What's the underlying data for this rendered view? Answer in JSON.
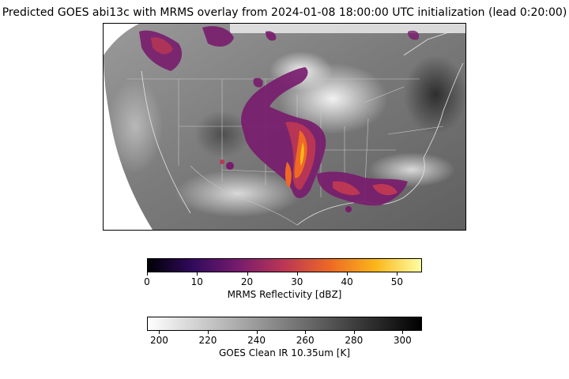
{
  "title": "Predicted GOES abi13c with MRMS overlay from 2024-01-08 18:00:00 UTC initialization (lead 0:20:00)",
  "colorbars": {
    "mrms": {
      "label": "MRMS Reflectivity [dBZ]",
      "range": [
        0,
        55
      ],
      "ticks": [
        "0",
        "10",
        "20",
        "30",
        "40",
        "50"
      ],
      "colormap": "inferno",
      "colors": [
        "#000004",
        "#320a5e",
        "#781c6d",
        "#bc3754",
        "#ed6925",
        "#fbb61a",
        "#fcffa4"
      ]
    },
    "goes": {
      "label": "GOES Clean IR 10.35um [K]",
      "range": [
        195,
        308
      ],
      "ticks": [
        "200",
        "220",
        "240",
        "260",
        "280",
        "300"
      ],
      "colormap": "gray_r",
      "colors": [
        "#ffffff",
        "#000000"
      ]
    }
  }
}
